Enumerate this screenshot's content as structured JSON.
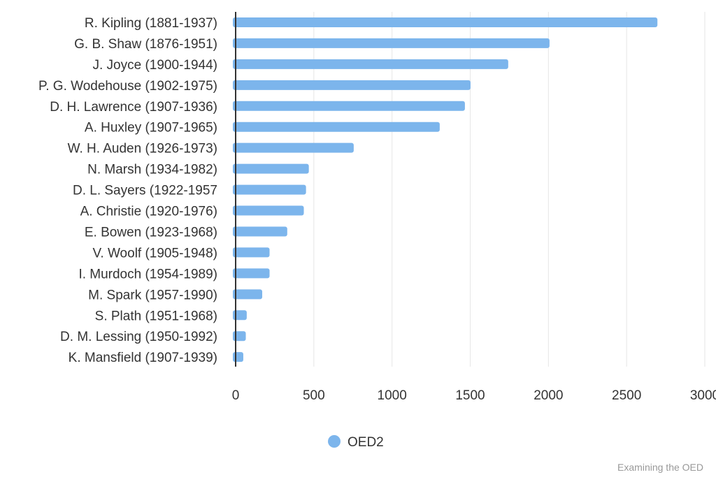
{
  "chart_data": {
    "type": "bar",
    "orientation": "horizontal",
    "categories": [
      "R. Kipling (1881-1937)",
      "G. B. Shaw (1876-1951)",
      "J. Joyce (1900-1944)",
      "P. G. Wodehouse (1902-1975)",
      "D. H. Lawrence (1907-1936)",
      "A. Huxley (1907-1965)",
      "W. H. Auden (1926-1973)",
      "N. Marsh (1934-1982)",
      "D. L. Sayers (1922-1957",
      "A. Christie (1920-1976)",
      "E. Bowen (1923-1968)",
      "V. Woolf (1905-1948)",
      "I. Murdoch (1954-1989)",
      "M. Spark (1957-1990)",
      "S. Plath (1951-1968)",
      "D. M. Lessing (1950-1992)",
      "K. Mansfield (1907-1939)"
    ],
    "series": [
      {
        "name": "OED2",
        "color": "#7cb5ec",
        "values": [
          2697,
          2007,
          1743,
          1502,
          1466,
          1305,
          755,
          468,
          450,
          436,
          330,
          217,
          217,
          170,
          71,
          65,
          49
        ]
      }
    ],
    "xlim": [
      0,
      3000
    ],
    "xticks": [
      "0",
      "500",
      "1000",
      "1500",
      "2000",
      "2500",
      "3000"
    ],
    "grid": true,
    "legend_position": "bottom-center",
    "title": "",
    "xlabel": "",
    "ylabel": ""
  },
  "credits": "Examining the OED"
}
